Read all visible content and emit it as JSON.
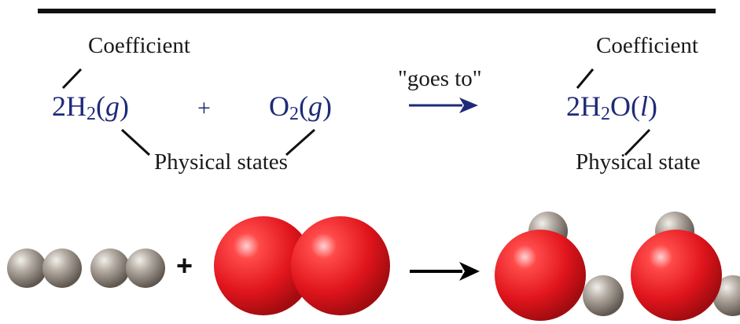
{
  "reactants": {
    "coefficient_label": "Coefficient",
    "h2": {
      "coef": "2",
      "el": "H",
      "sub": "2",
      "open": "(",
      "state": "g",
      "close": ")"
    },
    "plus": "+",
    "o2": {
      "el": "O",
      "sub": "2",
      "open": "(",
      "state": "g",
      "close": ")"
    },
    "states_label": "Physical states"
  },
  "arrow": {
    "label": "\"goes to\""
  },
  "products": {
    "coefficient_label": "Coefficient",
    "h2o": {
      "coef": "2",
      "el1": "H",
      "sub": "2",
      "el2": "O",
      "open": "(",
      "state": "l",
      "close": ")"
    },
    "state_label": "Physical state"
  },
  "models": {
    "plus": "+"
  },
  "colors": {
    "formula": "#1e2a78",
    "arrow": "#1e2a78",
    "hydrogen_atom": "#8e857c",
    "oxygen_atom": "#e0141c",
    "rule": "#111111"
  }
}
